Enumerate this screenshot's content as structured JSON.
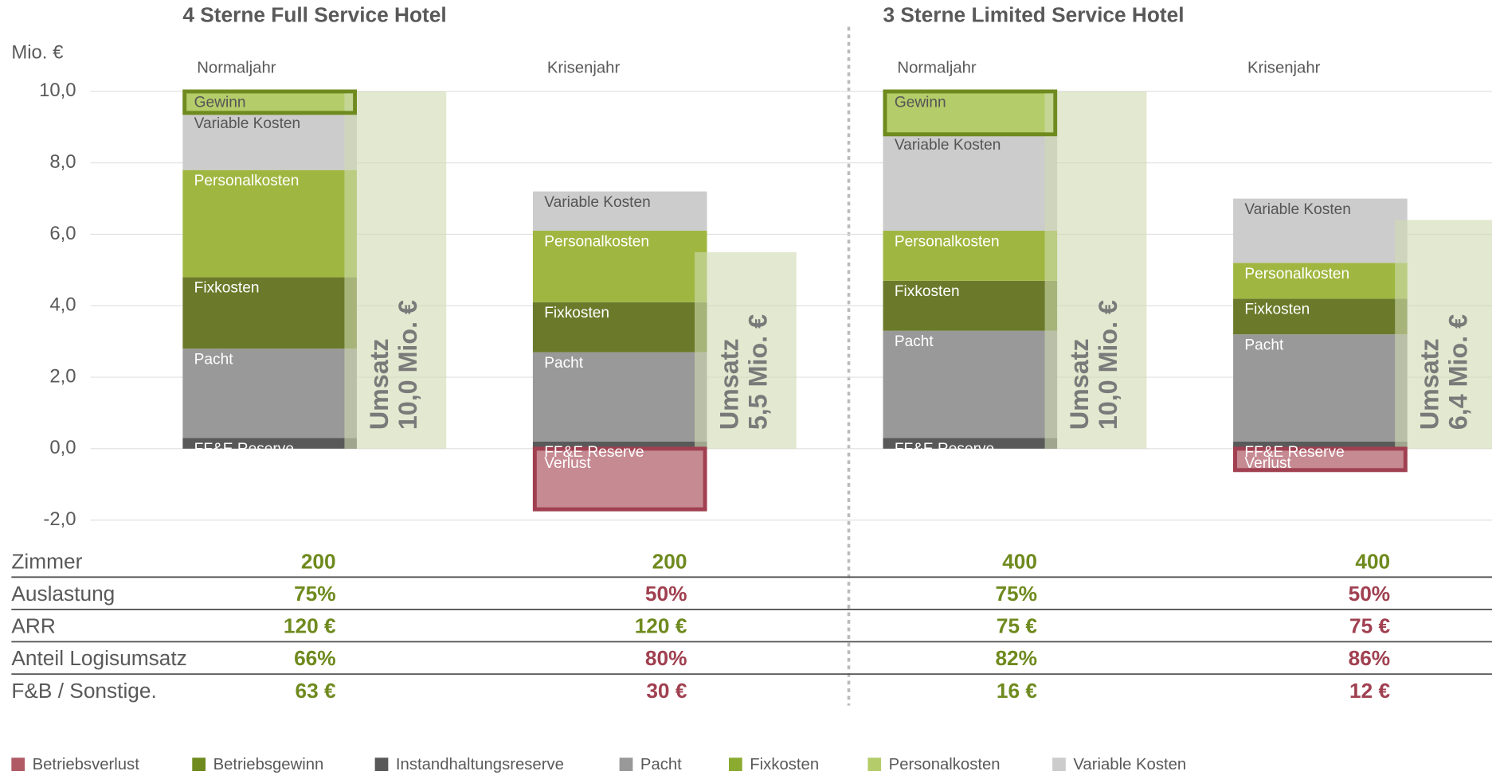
{
  "chart_data": {
    "type": "bar",
    "stacked": true,
    "ylabel": "Mio. €",
    "ylim": [
      -2,
      10
    ],
    "yticks": [
      {
        "value": -2,
        "label": "-2,0"
      },
      {
        "value": 0,
        "label": "0,0"
      },
      {
        "value": 2,
        "label": "2,0"
      },
      {
        "value": 4,
        "label": "4,0"
      },
      {
        "value": 6,
        "label": "6,0"
      },
      {
        "value": 8,
        "label": "8,0"
      },
      {
        "value": 10,
        "label": "10,0"
      }
    ],
    "grid": true,
    "revenue_color": "#cfdab0",
    "panels": [
      {
        "title": "4 Sterne Full Service Hotel",
        "bars": [
          {
            "category": "Normaljahr",
            "revenue": 10.0,
            "revenue_label": "Umsatz",
            "revenue_value_label": "10,0 Mio. €",
            "segments": [
              {
                "name": "FF&E Reserve",
                "value": 0.3,
                "color": "#595959"
              },
              {
                "name": "Pacht",
                "value": 2.5,
                "color": "#999999"
              },
              {
                "name": "Fixkosten",
                "value": 2.0,
                "color": "#6a7a2a"
              },
              {
                "name": "Personalkosten",
                "value": 3.0,
                "color": "#9fb740"
              },
              {
                "name": "Variable Kosten",
                "value": 1.6,
                "color": "#cccccc"
              },
              {
                "name": "Gewinn",
                "value": 0.6,
                "color": "#b5cc6a",
                "border": "#6f8a1e"
              }
            ]
          },
          {
            "category": "Krisenjahr",
            "revenue": 5.5,
            "revenue_label": "Umsatz",
            "revenue_value_label": "5,5 Mio. €",
            "segments": [
              {
                "name": "FF&E Reserve",
                "value": 0.2,
                "color": "#595959"
              },
              {
                "name": "Pacht",
                "value": 2.5,
                "color": "#999999"
              },
              {
                "name": "Fixkosten",
                "value": 1.4,
                "color": "#6a7a2a"
              },
              {
                "name": "Personalkosten",
                "value": 2.0,
                "color": "#9fb740"
              },
              {
                "name": "Variable Kosten",
                "value": 1.1,
                "color": "#cccccc"
              },
              {
                "name": "Verlust",
                "value": -1.7,
                "color": "#c68a92",
                "border": "#a04050"
              }
            ]
          }
        ]
      },
      {
        "title": "3 Sterne Limited Service Hotel",
        "bars": [
          {
            "category": "Normaljahr",
            "revenue": 10.0,
            "revenue_label": "Umsatz",
            "revenue_value_label": "10,0 Mio. €",
            "segments": [
              {
                "name": "FF&E Reserve",
                "value": 0.3,
                "color": "#595959"
              },
              {
                "name": "Pacht",
                "value": 3.0,
                "color": "#999999"
              },
              {
                "name": "Fixkosten",
                "value": 1.4,
                "color": "#6a7a2a"
              },
              {
                "name": "Personalkosten",
                "value": 1.4,
                "color": "#9fb740"
              },
              {
                "name": "Variable Kosten",
                "value": 2.7,
                "color": "#cccccc"
              },
              {
                "name": "Gewinn",
                "value": 1.2,
                "color": "#b5cc6a",
                "border": "#6f8a1e"
              }
            ]
          },
          {
            "category": "Krisenjahr",
            "revenue": 6.4,
            "revenue_label": "Umsatz",
            "revenue_value_label": "6,4 Mio. €",
            "segments": [
              {
                "name": "FF&E Reserve",
                "value": 0.2,
                "color": "#595959"
              },
              {
                "name": "Pacht",
                "value": 3.0,
                "color": "#999999"
              },
              {
                "name": "Fixkosten",
                "value": 1.0,
                "color": "#6a7a2a"
              },
              {
                "name": "Personalkosten",
                "value": 1.0,
                "color": "#9fb740"
              },
              {
                "name": "Variable Kosten",
                "value": 1.8,
                "color": "#cccccc"
              },
              {
                "name": "Verlust",
                "value": -0.6,
                "color": "#c68a92",
                "border": "#a04050"
              }
            ]
          }
        ]
      }
    ],
    "table": {
      "rows": [
        {
          "label": "Zimmer",
          "values": [
            "200",
            "200",
            "400",
            "400"
          ],
          "colors": [
            "#6f8a1e",
            "#6f8a1e",
            "#6f8a1e",
            "#6f8a1e"
          ]
        },
        {
          "label": "Auslastung",
          "values": [
            "75%",
            "50%",
            "75%",
            "50%"
          ],
          "colors": [
            "#6f8a1e",
            "#a04050",
            "#6f8a1e",
            "#a04050"
          ]
        },
        {
          "label": "ARR",
          "values": [
            "120 €",
            "120 €",
            "75 €",
            "75 €"
          ],
          "colors": [
            "#6f8a1e",
            "#6f8a1e",
            "#6f8a1e",
            "#a04050"
          ]
        },
        {
          "label": "Anteil Logisumsatz",
          "values": [
            "66%",
            "80%",
            "82%",
            "86%"
          ],
          "colors": [
            "#6f8a1e",
            "#a04050",
            "#6f8a1e",
            "#a04050"
          ]
        },
        {
          "label": "F&B / Sonstige.",
          "values": [
            "63 €",
            "30 €",
            "16 €",
            "12 €"
          ],
          "colors": [
            "#6f8a1e",
            "#a04050",
            "#6f8a1e",
            "#a04050"
          ]
        }
      ]
    },
    "legend": [
      {
        "name": "Betriebsverlust",
        "color": "#b05a66"
      },
      {
        "name": "Betriebsgewinn",
        "color": "#6f8a1e"
      },
      {
        "name": "Instandhaltungsreserve",
        "color": "#595959"
      },
      {
        "name": "Pacht",
        "color": "#999999"
      },
      {
        "name": "Fixkosten",
        "color": "#8aaa30"
      },
      {
        "name": "Personalkosten",
        "color": "#b5cc6a"
      },
      {
        "name": "Variable Kosten",
        "color": "#cccccc"
      }
    ]
  }
}
